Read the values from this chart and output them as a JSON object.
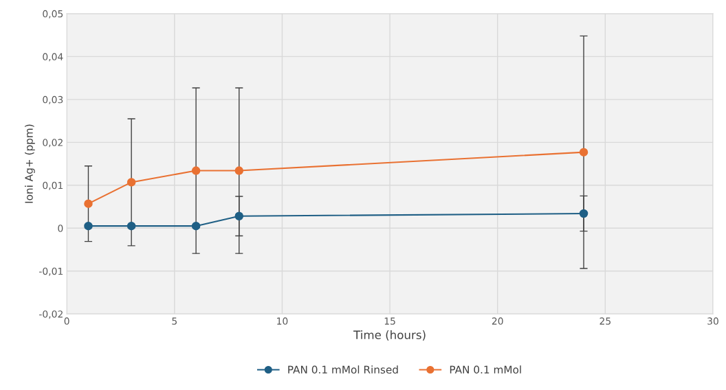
{
  "chart_data": {
    "type": "line",
    "xlabel": "Time (hours)",
    "ylabel": "Ioni Ag+ (ppm)",
    "x": [
      1,
      3,
      6,
      8,
      24
    ],
    "series": [
      {
        "name": "PAN 0.1 mMol Rinsed",
        "color": "#1f5f85",
        "values": [
          0.0005,
          0.0005,
          0.0005,
          0.0028,
          0.0034
        ],
        "errors": [
          null,
          null,
          null,
          0.0046,
          0.0041
        ]
      },
      {
        "name": "PAN 0.1 mMol",
        "color": "#e97132",
        "values": [
          0.0057,
          0.0107,
          0.0134,
          0.0134,
          0.0177
        ],
        "errors": [
          0.0088,
          0.0148,
          0.0193,
          0.0193,
          0.0271
        ]
      }
    ],
    "xlim": [
      0,
      30
    ],
    "xticks": [
      0,
      5,
      10,
      15,
      20,
      25,
      30
    ],
    "ylim": [
      -0.02,
      0.05
    ],
    "yticks": [
      {
        "value": -0.02,
        "label": "-0,02"
      },
      {
        "value": -0.01,
        "label": "-0,01"
      },
      {
        "value": 0,
        "label": "0"
      },
      {
        "value": 0.01,
        "label": "0,01"
      },
      {
        "value": 0.02,
        "label": "0,02"
      },
      {
        "value": 0.03,
        "label": "0,03"
      },
      {
        "value": 0.04,
        "label": "0,04"
      },
      {
        "value": 0.05,
        "label": "0,05"
      }
    ],
    "grid": true,
    "legend": "bottom",
    "marker": "circle",
    "line_style": "solid"
  }
}
